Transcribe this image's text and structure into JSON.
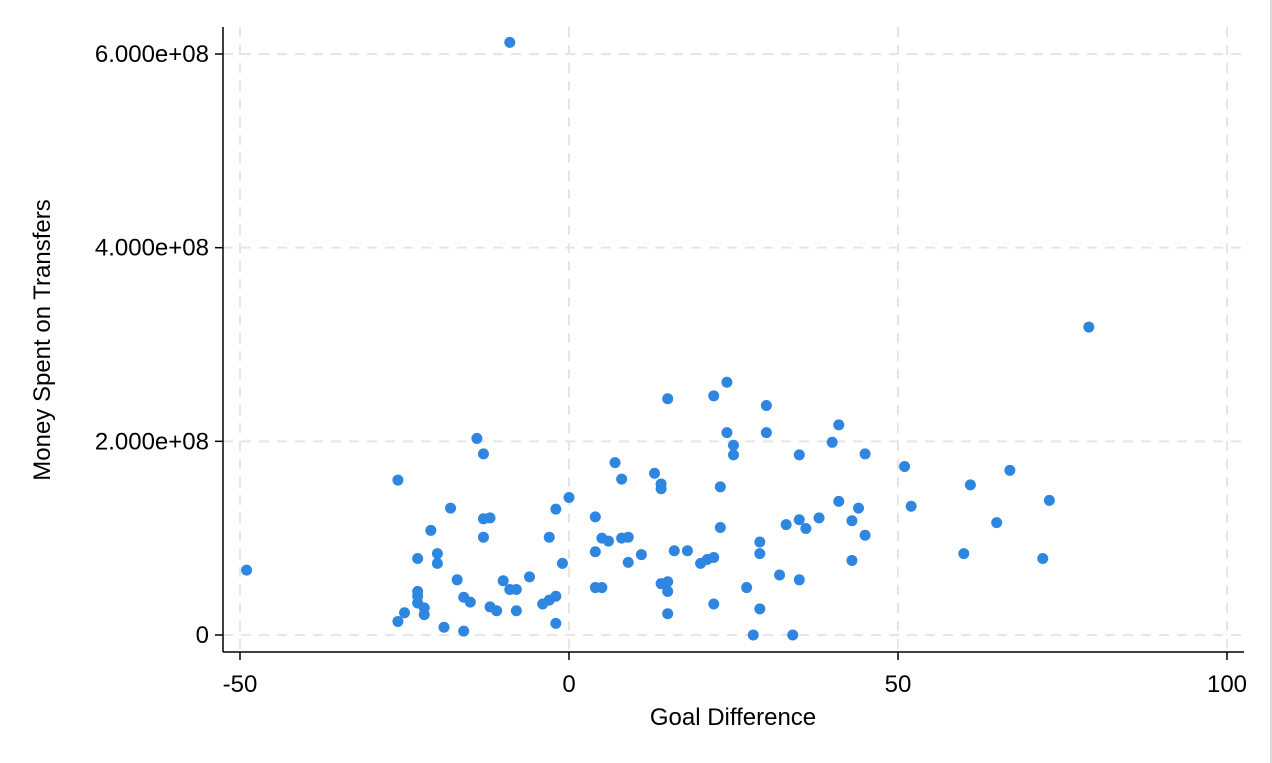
{
  "chart_data": {
    "type": "scatter",
    "title": "",
    "xlabel": "Goal Difference",
    "ylabel": "Money Spent on Transfers",
    "xlim": [
      -52,
      102
    ],
    "ylim": [
      -15000000,
      625000000
    ],
    "x_ticks": [
      {
        "value": -50,
        "label": "-50"
      },
      {
        "value": 0,
        "label": "0"
      },
      {
        "value": 50,
        "label": "50"
      },
      {
        "value": 100,
        "label": "100"
      }
    ],
    "y_ticks": [
      {
        "value": 0,
        "label": "0"
      },
      {
        "value": 200000000,
        "label": "2.000e+08"
      },
      {
        "value": 400000000,
        "label": "4.000e+08"
      },
      {
        "value": 600000000,
        "label": "6.000e+08"
      }
    ],
    "grid": true,
    "legend": "none",
    "marker_color": "#2f86e0",
    "points": [
      [
        -49,
        67000000
      ],
      [
        -26,
        160000000
      ],
      [
        -26,
        14000000
      ],
      [
        -25,
        23000000
      ],
      [
        -23,
        79000000
      ],
      [
        -23,
        45000000
      ],
      [
        -23,
        40000000
      ],
      [
        -23,
        33000000
      ],
      [
        -22,
        28000000
      ],
      [
        -22,
        21000000
      ],
      [
        -21,
        108000000
      ],
      [
        -20,
        84000000
      ],
      [
        -20,
        74000000
      ],
      [
        -19,
        8000000
      ],
      [
        -18,
        131000000
      ],
      [
        -17,
        57000000
      ],
      [
        -16,
        39000000
      ],
      [
        -16,
        4000000
      ],
      [
        -15,
        34000000
      ],
      [
        -14,
        203000000
      ],
      [
        -13,
        187000000
      ],
      [
        -13,
        120000000
      ],
      [
        -13,
        101000000
      ],
      [
        -12,
        121000000
      ],
      [
        -12,
        29000000
      ],
      [
        -11,
        25000000
      ],
      [
        -10,
        56000000
      ],
      [
        -9,
        612000000
      ],
      [
        -9,
        47000000
      ],
      [
        -8,
        47000000
      ],
      [
        -8,
        25000000
      ],
      [
        -6,
        60000000
      ],
      [
        -4,
        32000000
      ],
      [
        -3,
        101000000
      ],
      [
        -3,
        36000000
      ],
      [
        -2,
        130000000
      ],
      [
        -2,
        40000000
      ],
      [
        -2,
        12000000
      ],
      [
        -1,
        74000000
      ],
      [
        0,
        142000000
      ],
      [
        4,
        122000000
      ],
      [
        4,
        86000000
      ],
      [
        4,
        49000000
      ],
      [
        5,
        100000000
      ],
      [
        5,
        49000000
      ],
      [
        6,
        97000000
      ],
      [
        7,
        178000000
      ],
      [
        8,
        161000000
      ],
      [
        8,
        100000000
      ],
      [
        9,
        101000000
      ],
      [
        9,
        75000000
      ],
      [
        11,
        83000000
      ],
      [
        13,
        167000000
      ],
      [
        14,
        156000000
      ],
      [
        14,
        151000000
      ],
      [
        14,
        53000000
      ],
      [
        15,
        244000000
      ],
      [
        15,
        55000000
      ],
      [
        15,
        45000000
      ],
      [
        15,
        22000000
      ],
      [
        16,
        87000000
      ],
      [
        18,
        87000000
      ],
      [
        20,
        74000000
      ],
      [
        21,
        78000000
      ],
      [
        22,
        247000000
      ],
      [
        22,
        80000000
      ],
      [
        22,
        32000000
      ],
      [
        23,
        153000000
      ],
      [
        23,
        111000000
      ],
      [
        24,
        261000000
      ],
      [
        24,
        209000000
      ],
      [
        25,
        196000000
      ],
      [
        25,
        186000000
      ],
      [
        27,
        49000000
      ],
      [
        28,
        0
      ],
      [
        29,
        96000000
      ],
      [
        29,
        84000000
      ],
      [
        29,
        27000000
      ],
      [
        30,
        237000000
      ],
      [
        30,
        209000000
      ],
      [
        32,
        62000000
      ],
      [
        33,
        114000000
      ],
      [
        34,
        0
      ],
      [
        35,
        186000000
      ],
      [
        35,
        119000000
      ],
      [
        35,
        57000000
      ],
      [
        36,
        110000000
      ],
      [
        38,
        121000000
      ],
      [
        40,
        199000000
      ],
      [
        41,
        217000000
      ],
      [
        41,
        138000000
      ],
      [
        43,
        118000000
      ],
      [
        43,
        77000000
      ],
      [
        44,
        131000000
      ],
      [
        45,
        187000000
      ],
      [
        45,
        103000000
      ],
      [
        51,
        174000000
      ],
      [
        52,
        133000000
      ],
      [
        60,
        84000000
      ],
      [
        61,
        155000000
      ],
      [
        65,
        116000000
      ],
      [
        67,
        170000000
      ],
      [
        72,
        79000000
      ],
      [
        73,
        139000000
      ],
      [
        79,
        318000000
      ]
    ]
  }
}
